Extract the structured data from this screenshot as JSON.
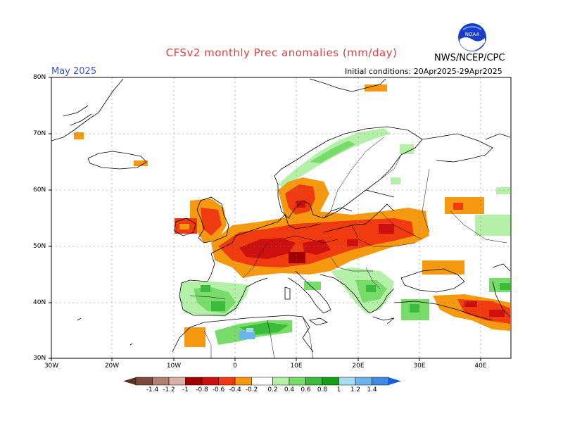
{
  "header": {
    "title": "CFSv2 monthly Prec anomalies (mm/day)",
    "month": "May 2025",
    "initial_conditions": "Initial conditions: 20Apr2025-29Apr2025",
    "org": "NWS/NCEP/CPC",
    "logo_text": "NOAA"
  },
  "axes": {
    "lat_labels": [
      "80N",
      "70N",
      "60N",
      "50N",
      "40N",
      "30N"
    ],
    "lon_labels": [
      "30W",
      "20W",
      "10W",
      "0",
      "10E",
      "20E",
      "30E",
      "40E"
    ]
  },
  "colorbar": {
    "colors": [
      "#7a4a3a",
      "#b08070",
      "#d8b0a8",
      "#a00000",
      "#cc1010",
      "#f03a10",
      "#f59a10",
      "#ffffff",
      "#b4f0a8",
      "#78dc6a",
      "#3cbc3c",
      "#14a014",
      "#a8dcf0",
      "#6ab4f0",
      "#3c8ce6"
    ],
    "labels": [
      "-1.4",
      "-1.2",
      "-1",
      "-0.8",
      "-0.6",
      "-0.4",
      "-0.2",
      "0.2",
      "0.4",
      "0.6",
      "0.8",
      "1",
      "1.2",
      "1.4"
    ]
  }
}
